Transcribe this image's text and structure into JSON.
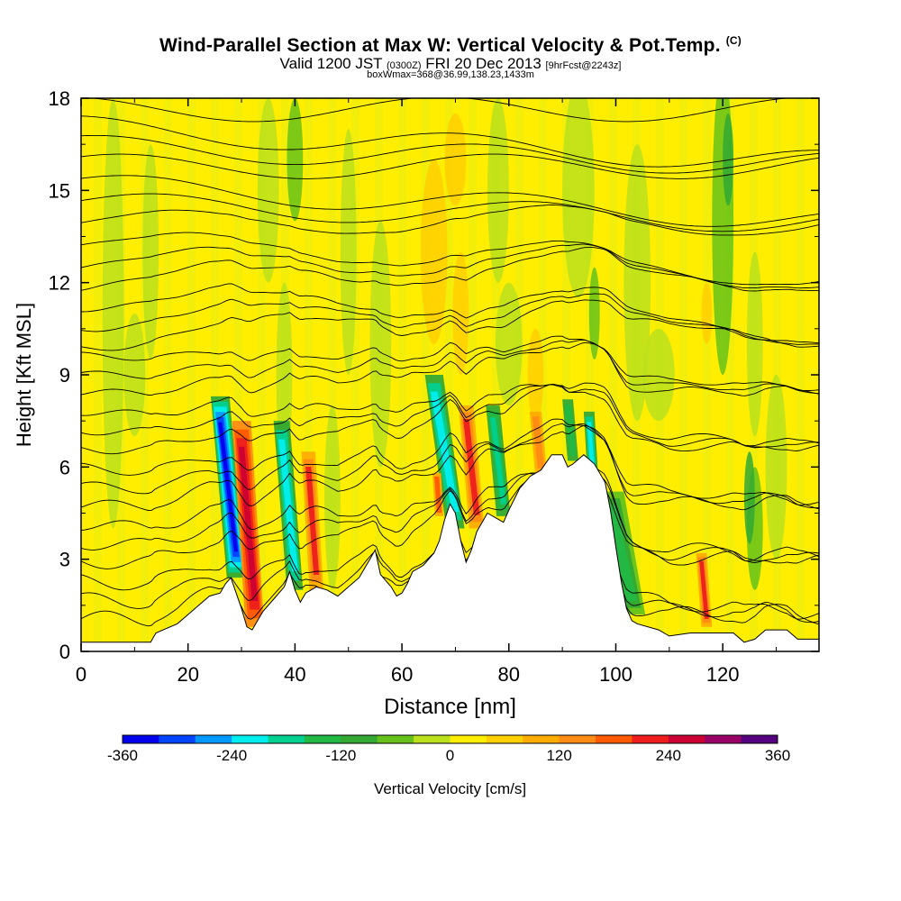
{
  "title_main": "Wind-Parallel Section at Max W: Vertical Velocity & Pot.Temp.",
  "title_mark": "(C)",
  "valid_prefix": "Valid 1200 JST",
  "valid_utc": "(0300Z)",
  "valid_date": "FRI 20 Dec 2013",
  "valid_fcst": "[9hrFcst@2243z]",
  "box_info": "boxWmax=368@36.99,138.23,1433m",
  "chart_data": {
    "type": "cross-section",
    "xlabel": "Distance [nm]",
    "ylabel": "Height [Kft MSL]",
    "xlim": [
      0,
      138
    ],
    "ylim": [
      0,
      18
    ],
    "xticks": [
      0,
      20,
      40,
      60,
      80,
      100,
      120
    ],
    "yticks": [
      0,
      3,
      6,
      9,
      12,
      15,
      18
    ],
    "terrain": [
      [
        0,
        0.3
      ],
      [
        8,
        0.3
      ],
      [
        13,
        0.3
      ],
      [
        14,
        0.6
      ],
      [
        18,
        0.9
      ],
      [
        20,
        1.2
      ],
      [
        22,
        1.5
      ],
      [
        24,
        1.8
      ],
      [
        26,
        1.9
      ],
      [
        27,
        2.2
      ],
      [
        28,
        2.4
      ],
      [
        29,
        1.9
      ],
      [
        30,
        1.4
      ],
      [
        31,
        0.8
      ],
      [
        32,
        0.7
      ],
      [
        33,
        1.0
      ],
      [
        34,
        1.3
      ],
      [
        36,
        1.7
      ],
      [
        38,
        2.1
      ],
      [
        39,
        2.6
      ],
      [
        40,
        2.0
      ],
      [
        41,
        1.6
      ],
      [
        42,
        1.9
      ],
      [
        44,
        2.1
      ],
      [
        46,
        2.0
      ],
      [
        48,
        1.8
      ],
      [
        50,
        2.1
      ],
      [
        52,
        2.4
      ],
      [
        54,
        3.0
      ],
      [
        55,
        3.3
      ],
      [
        56,
        2.5
      ],
      [
        58,
        2.1
      ],
      [
        59,
        1.8
      ],
      [
        60,
        1.9
      ],
      [
        61,
        2.2
      ],
      [
        62,
        2.6
      ],
      [
        64,
        2.8
      ],
      [
        66,
        3.2
      ],
      [
        67,
        3.6
      ],
      [
        68,
        4.3
      ],
      [
        69,
        4.8
      ],
      [
        70,
        4.5
      ],
      [
        71,
        3.6
      ],
      [
        72,
        2.9
      ],
      [
        73,
        3.3
      ],
      [
        74,
        3.9
      ],
      [
        76,
        4.5
      ],
      [
        78,
        4.3
      ],
      [
        79,
        4.2
      ],
      [
        80,
        4.6
      ],
      [
        82,
        5.3
      ],
      [
        84,
        5.7
      ],
      [
        86,
        5.9
      ],
      [
        88,
        6.4
      ],
      [
        90,
        6.4
      ],
      [
        91,
        6.0
      ],
      [
        92,
        6.1
      ],
      [
        94,
        6.4
      ],
      [
        96,
        6.1
      ],
      [
        98,
        5.5
      ],
      [
        99,
        4.6
      ],
      [
        100,
        3.4
      ],
      [
        101,
        2.3
      ],
      [
        102,
        1.4
      ],
      [
        103,
        1.0
      ],
      [
        104,
        0.9
      ],
      [
        108,
        0.7
      ],
      [
        110,
        0.5
      ],
      [
        114,
        0.6
      ],
      [
        118,
        0.6
      ],
      [
        122,
        0.6
      ],
      [
        124,
        0.3
      ],
      [
        126,
        0.4
      ],
      [
        128,
        0.7
      ],
      [
        132,
        0.7
      ],
      [
        134,
        0.4
      ],
      [
        138,
        0.4
      ]
    ],
    "wmax_cm_s": 368,
    "colorbar": {
      "label": "Vertical Velocity [cm/s]",
      "ticks": [
        -360,
        -240,
        -120,
        0,
        120,
        240,
        360
      ],
      "colors": [
        "#0000ee",
        "#0044ff",
        "#0099ff",
        "#00eeee",
        "#00d090",
        "#22b844",
        "#33a833",
        "#66c21a",
        "#bbe11c",
        "#ffee00",
        "#ffcf00",
        "#ffac00",
        "#ff8a14",
        "#ff5a00",
        "#ee1e1e",
        "#cc0033",
        "#990066",
        "#55007f"
      ]
    }
  }
}
